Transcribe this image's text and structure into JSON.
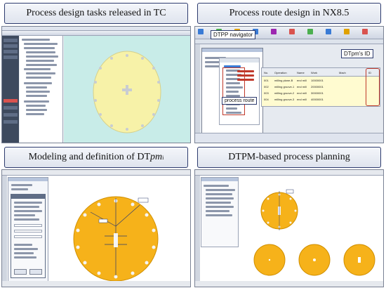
{
  "panels": {
    "p1": {
      "title": "Process design tasks released in TC"
    },
    "p2": {
      "title": "Process route design in NX8.5",
      "callout_navigator": "DTPP navigator",
      "callout_id": "DTpm's ID",
      "callout_route": "process route",
      "table": {
        "headers": [
          "No.",
          "Operation",
          "Name",
          "Work",
          "Mach",
          "ID"
        ],
        "rows": [
          [
            "001",
            "milling plane-B",
            "end mill",
            "10000001",
            "",
            ""
          ],
          [
            "002",
            "milling groove-1",
            "end mill",
            "20000001",
            "",
            ""
          ],
          [
            "003",
            "milling groove-2",
            "end mill",
            "30000001",
            "",
            ""
          ],
          [
            "004",
            "milling groove-3",
            "end mill",
            "40000001",
            "",
            ""
          ]
        ]
      }
    },
    "p3": {
      "title_main": "Modeling and definition of DT",
      "title_italic": "pm",
      "title_sub": "i"
    },
    "p4": {
      "title": "DTPM-based process planning"
    }
  },
  "colors": {
    "banner_border": "#2d3b6e",
    "disc_pale": "#f7f2a8",
    "disc_orange": "#f6b21a",
    "callout_border": "#c0392b"
  }
}
